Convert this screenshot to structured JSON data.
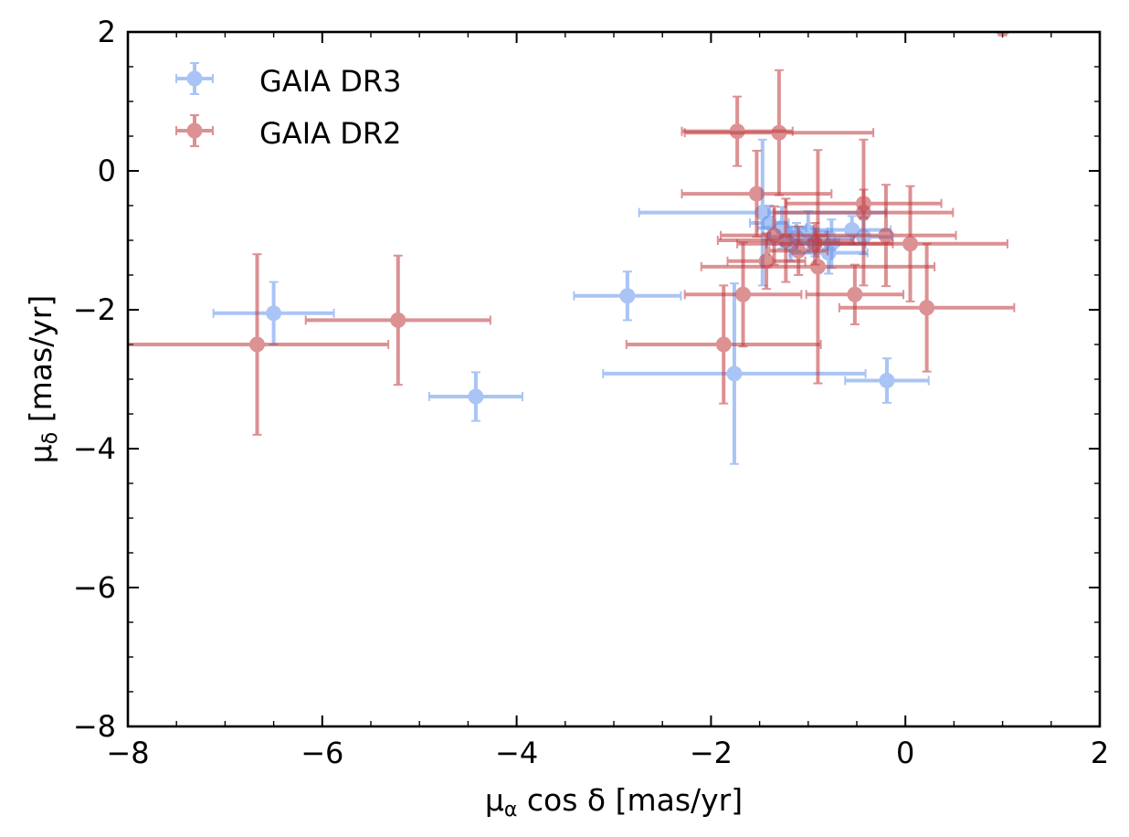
{
  "chart_data": {
    "type": "scatter",
    "title": "",
    "xlabel": "μ_α cos δ [mas/yr]",
    "ylabel": "μ_δ [mas/yr]",
    "xlabel_parts": {
      "pre": "μ",
      "sub": "α",
      "post": " cos δ [mas/yr]"
    },
    "ylabel_parts": {
      "pre": "μ",
      "sub": "δ",
      "post": " [mas/yr]"
    },
    "xlim": [
      -8,
      2
    ],
    "ylim": [
      -8,
      2
    ],
    "xticks": [
      -8,
      -6,
      -4,
      -2,
      0,
      2
    ],
    "yticks": [
      -8,
      -6,
      -4,
      -2,
      0,
      2
    ],
    "xtick_labels": [
      "−8",
      "−6",
      "−4",
      "−2",
      "0",
      "2"
    ],
    "ytick_labels": [
      "−8",
      "−6",
      "−4",
      "−2",
      "0",
      "2"
    ],
    "grid": false,
    "legend_position": "top-left",
    "series": [
      {
        "name": "GAIA DR3",
        "color": "#6495ED",
        "points": [
          {
            "x": -6.5,
            "y": -2.05,
            "xerr": 0.62,
            "yerr": 0.45
          },
          {
            "x": -4.42,
            "y": -3.25,
            "xerr": 0.48,
            "yerr": 0.35
          },
          {
            "x": -2.86,
            "y": -1.8,
            "xerr": 0.55,
            "yerr": 0.35
          },
          {
            "x": -1.76,
            "y": -2.92,
            "xerr": 1.35,
            "yerr": 1.3
          },
          {
            "x": -0.19,
            "y": -3.02,
            "xerr": 0.43,
            "yerr": 0.32
          },
          {
            "x": -1.47,
            "y": -0.6,
            "xerr": 1.27,
            "yerr": 1.05
          },
          {
            "x": -1.4,
            "y": -0.75,
            "xerr": 0.2,
            "yerr": 0.25
          },
          {
            "x": -1.27,
            "y": -0.82,
            "xerr": 0.25,
            "yerr": 0.3
          },
          {
            "x": -1.12,
            "y": -0.95,
            "xerr": 0.3,
            "yerr": 0.2
          },
          {
            "x": -1.0,
            "y": -0.88,
            "xerr": 0.2,
            "yerr": 0.3
          },
          {
            "x": -0.93,
            "y": -1.03,
            "xerr": 0.25,
            "yerr": 0.2
          },
          {
            "x": -0.79,
            "y": -1.18,
            "xerr": 0.4,
            "yerr": 0.3
          },
          {
            "x": -0.76,
            "y": -1.05,
            "xerr": 0.35,
            "yerr": 0.35
          },
          {
            "x": -0.55,
            "y": -0.85,
            "xerr": 0.4,
            "yerr": 0.2
          },
          {
            "x": -0.43,
            "y": -0.95,
            "xerr": 0.3,
            "yerr": 0.25
          },
          {
            "x": -1.18,
            "y": -1.05,
            "xerr": 0.25,
            "yerr": 0.25
          }
        ]
      },
      {
        "name": "GAIA DR2",
        "color": "#C0393B",
        "points": [
          {
            "x": -6.67,
            "y": -2.5,
            "xerr": 1.35,
            "yerr": 1.3
          },
          {
            "x": -5.22,
            "y": -2.15,
            "xerr": 0.95,
            "yerr": 0.93
          },
          {
            "x": -1.73,
            "y": 0.57,
            "xerr": 0.57,
            "yerr": 0.5
          },
          {
            "x": -1.3,
            "y": 0.55,
            "xerr": 0.97,
            "yerr": 0.9
          },
          {
            "x": -1.53,
            "y": -0.33,
            "xerr": 0.77,
            "yerr": 0.62
          },
          {
            "x": -1.35,
            "y": -0.93,
            "xerr": 0.55,
            "yerr": 0.42
          },
          {
            "x": -1.43,
            "y": -1.3,
            "xerr": 0.4,
            "yerr": 0.4
          },
          {
            "x": -1.23,
            "y": -1.0,
            "xerr": 0.7,
            "yerr": 0.6
          },
          {
            "x": -1.1,
            "y": -1.15,
            "xerr": 0.3,
            "yerr": 0.35
          },
          {
            "x": -0.93,
            "y": -1.05,
            "xerr": 0.8,
            "yerr": 0.3
          },
          {
            "x": -0.9,
            "y": -1.38,
            "xerr": 1.2,
            "yerr": 1.68
          },
          {
            "x": -0.43,
            "y": -0.47,
            "xerr": 0.8,
            "yerr": 0.2
          },
          {
            "x": -0.43,
            "y": -0.6,
            "xerr": 0.92,
            "yerr": 1.05
          },
          {
            "x": -0.2,
            "y": -0.93,
            "xerr": 0.72,
            "yerr": 0.73
          },
          {
            "x": 0.05,
            "y": -1.05,
            "xerr": 1.0,
            "yerr": 0.83
          },
          {
            "x": -1.67,
            "y": -1.78,
            "xerr": 0.6,
            "yerr": 0.75
          },
          {
            "x": -0.52,
            "y": -1.78,
            "xerr": 0.5,
            "yerr": 0.43
          },
          {
            "x": 0.22,
            "y": -1.97,
            "xerr": 0.9,
            "yerr": 0.92
          },
          {
            "x": -1.87,
            "y": -2.5,
            "xerr": 1.0,
            "yerr": 0.85
          },
          {
            "x": 1.0,
            "y": 2.05,
            "xerr": 0.12,
            "yerr": 0.1
          }
        ]
      }
    ]
  }
}
